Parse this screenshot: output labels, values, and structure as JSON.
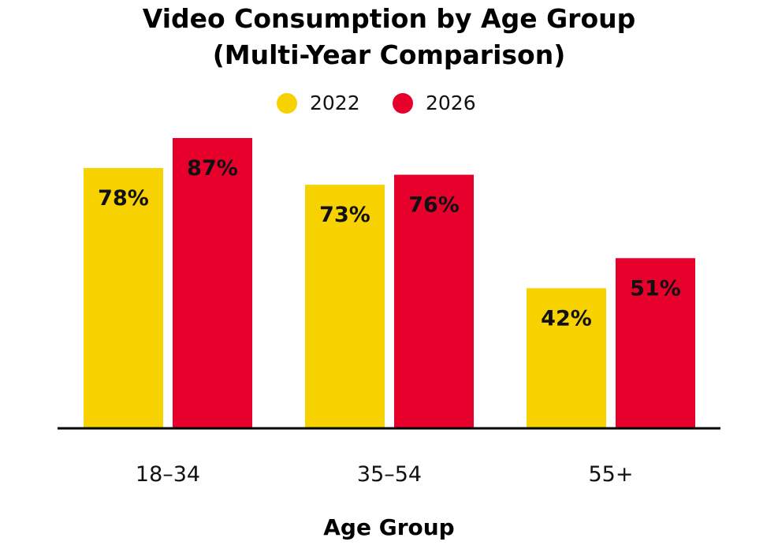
{
  "chart_data": {
    "type": "bar",
    "title_lines": [
      "Video Consumption by Age Group",
      "(Multi-Year Comparison)"
    ],
    "xlabel": "Age Group",
    "ylabel": "",
    "categories": [
      "18–34",
      "35–54",
      "55+"
    ],
    "series": [
      {
        "name": "2022",
        "values": [
          78,
          73,
          42
        ],
        "labels": [
          "78%",
          "73%",
          "42%"
        ],
        "color": "#F7D200"
      },
      {
        "name": "2026",
        "values": [
          87,
          76,
          51
        ],
        "labels": [
          "87%",
          "76%",
          "51%"
        ],
        "color": "#E8002D"
      }
    ],
    "ylim": [
      0,
      100
    ],
    "grid": false,
    "legend_position": "top-center"
  }
}
